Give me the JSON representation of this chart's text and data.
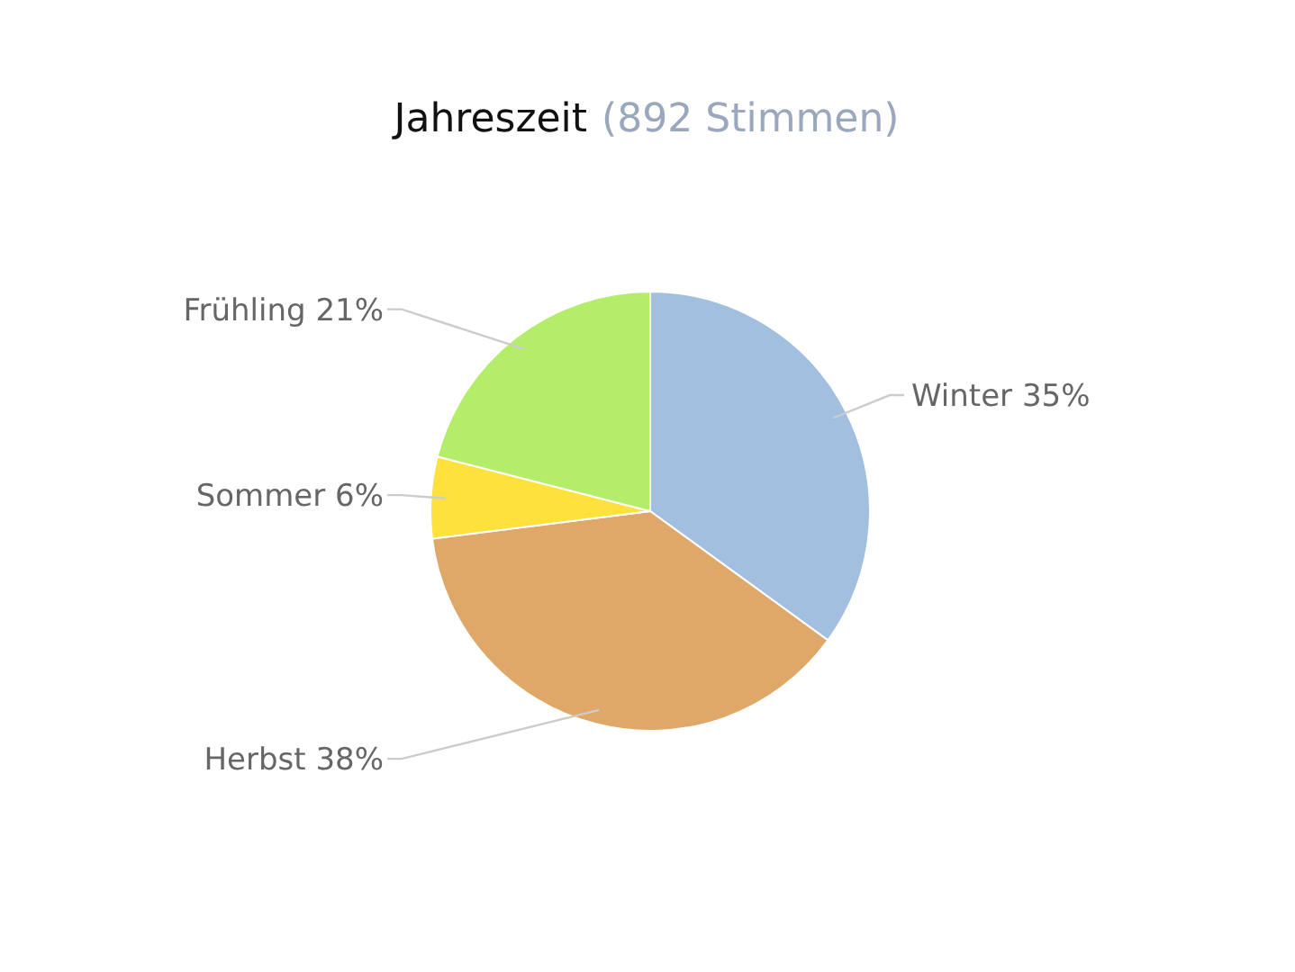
{
  "chart_data": {
    "type": "pie",
    "title": "Jahreszeit",
    "subtitle": "(892 Stimmen)",
    "categories": [
      "Winter",
      "Herbst",
      "Sommer",
      "Frühling"
    ],
    "values": [
      35,
      38,
      6,
      21
    ],
    "value_labels": [
      "35%",
      "38%",
      "6%",
      "21%"
    ],
    "colors": [
      "#a3bfe0",
      "#e0a868",
      "#fde23e",
      "#b4ed6a"
    ]
  }
}
